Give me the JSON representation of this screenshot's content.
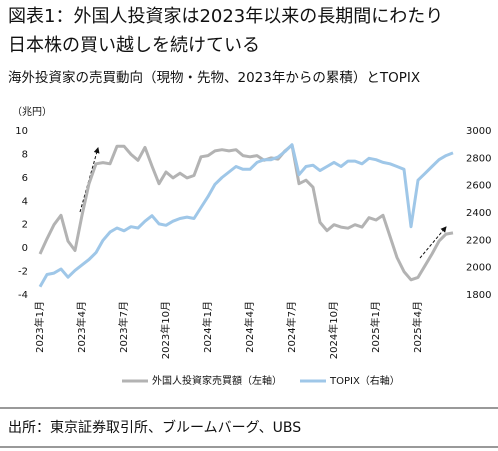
{
  "chart_data": {
    "type": "line",
    "title": "図表1：外国人投資家は2023年以来の長期間にわたり",
    "title_line2": "日本株の買い越しを続けている",
    "subtitle": "海外投資家の売買動向（現物・先物、2023年からの累積）とTOPIX",
    "ylabel": "（兆円）",
    "source": "出所：東京証券取引所、ブルームバーグ、UBS",
    "x": [
      0,
      0.5,
      1,
      1.5,
      2,
      2.5,
      3,
      3.5,
      4,
      4.5,
      5,
      5.5,
      6,
      6.5,
      7,
      7.5,
      8,
      8.5,
      9,
      9.5,
      10,
      10.5,
      11,
      11.5,
      12,
      12.5,
      13,
      13.5,
      14,
      14.5,
      15,
      15.5,
      16,
      16.5,
      17,
      17.5,
      18,
      18.5,
      19,
      19.5,
      20,
      20.5,
      21,
      21.5,
      22,
      22.5,
      23,
      23.5,
      24,
      24.5,
      25,
      25.5,
      26,
      26.5,
      27,
      27.5,
      28,
      28.5,
      29,
      29.5
    ],
    "series": [
      {
        "name": "外国人投資家売買額（左軸）",
        "color": "#b3b3b3",
        "axis": "y",
        "values": [
          -0.5,
          0.8,
          2.0,
          2.8,
          0.6,
          -0.2,
          2.8,
          5.5,
          7.2,
          7.3,
          7.2,
          8.7,
          8.7,
          8.0,
          7.5,
          8.6,
          7.0,
          5.5,
          6.5,
          6.0,
          6.4,
          6.0,
          6.2,
          7.8,
          7.9,
          8.3,
          8.4,
          8.3,
          8.4,
          7.9,
          7.8,
          7.9,
          7.5,
          7.7,
          7.6,
          8.3,
          8.8,
          5.5,
          5.8,
          5.2,
          2.2,
          1.5,
          2.0,
          1.8,
          1.7,
          2.0,
          1.8,
          2.6,
          2.4,
          2.8,
          1.0,
          -0.8,
          -2.0,
          -2.7,
          -2.5,
          -1.5,
          -0.5,
          0.6,
          1.2,
          1.3
        ]
      },
      {
        "name": "TOPIX（右軸）",
        "color": "#9fc7e8",
        "axis": "y2",
        "values": [
          1860,
          1950,
          1960,
          1990,
          1930,
          1980,
          2020,
          2060,
          2110,
          2200,
          2260,
          2290,
          2270,
          2300,
          2290,
          2340,
          2380,
          2320,
          2310,
          2340,
          2360,
          2370,
          2360,
          2440,
          2520,
          2610,
          2660,
          2700,
          2740,
          2720,
          2720,
          2770,
          2790,
          2790,
          2810,
          2850,
          2900,
          2680,
          2740,
          2750,
          2710,
          2740,
          2770,
          2740,
          2780,
          2780,
          2760,
          2800,
          2790,
          2770,
          2760,
          2740,
          2720,
          2300,
          2640,
          2690,
          2740,
          2790,
          2820,
          2840
        ]
      }
    ],
    "xlim": [
      0,
      30
    ],
    "xticks": [
      {
        "value": 0,
        "label": "2023年1月"
      },
      {
        "value": 3,
        "label": "2023年4月"
      },
      {
        "value": 6,
        "label": "2023年7月"
      },
      {
        "value": 9,
        "label": "2023年10月"
      },
      {
        "value": 12,
        "label": "2024年1月"
      },
      {
        "value": 15,
        "label": "2024年4月"
      },
      {
        "value": 18,
        "label": "2024年7月"
      },
      {
        "value": 21,
        "label": "2024年10月"
      },
      {
        "value": 24,
        "label": "2025年1月"
      },
      {
        "value": 27,
        "label": "2025年4月"
      }
    ],
    "ylim": [
      -4,
      10
    ],
    "yticks": [
      -4,
      -2,
      0,
      2,
      4,
      6,
      8,
      10
    ],
    "y2lim": [
      1800,
      3000
    ],
    "y2ticks": [
      1800,
      2000,
      2200,
      2400,
      2600,
      2800,
      3000
    ]
  }
}
